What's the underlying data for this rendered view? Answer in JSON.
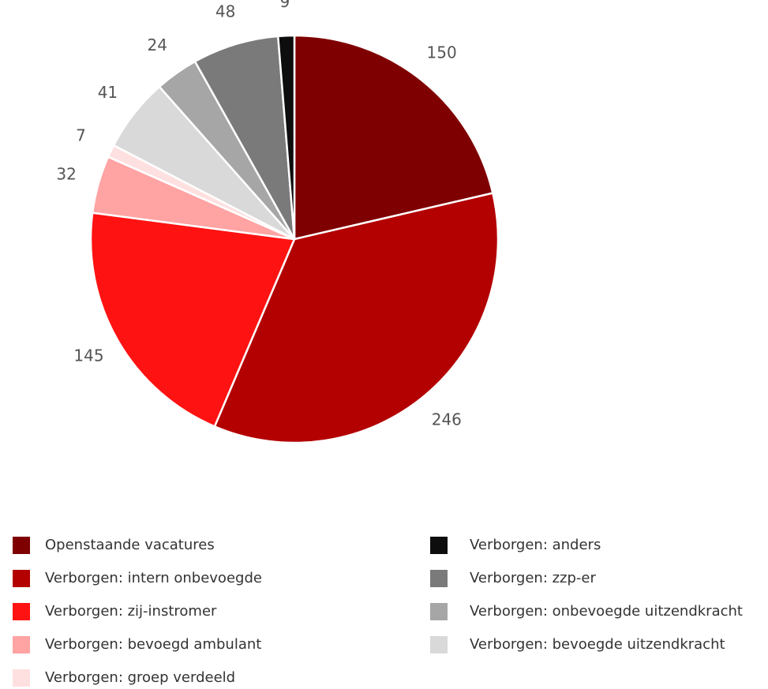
{
  "chart_data": {
    "type": "pie",
    "categories": [
      "Openstaande vacatures",
      "Verborgen: intern onbevoegde",
      "Verborgen: zij-instromer",
      "Verborgen: bevoegd ambulant",
      "Verborgen: groep verdeeld",
      "Verborgen: bevoegde uitzendkracht",
      "Verborgen: onbevoegde uitzendkracht",
      "Verborgen: zzp-er",
      "Verborgen: anders"
    ],
    "values": [
      150,
      246,
      145,
      32,
      7,
      41,
      24,
      48,
      9
    ],
    "colors": [
      "#7f0000",
      "#b30000",
      "#ff1212",
      "#ffa3a3",
      "#ffe0e0",
      "#d9d9d9",
      "#a6a6a6",
      "#7a7a7a",
      "#0d0d0d"
    ]
  }
}
